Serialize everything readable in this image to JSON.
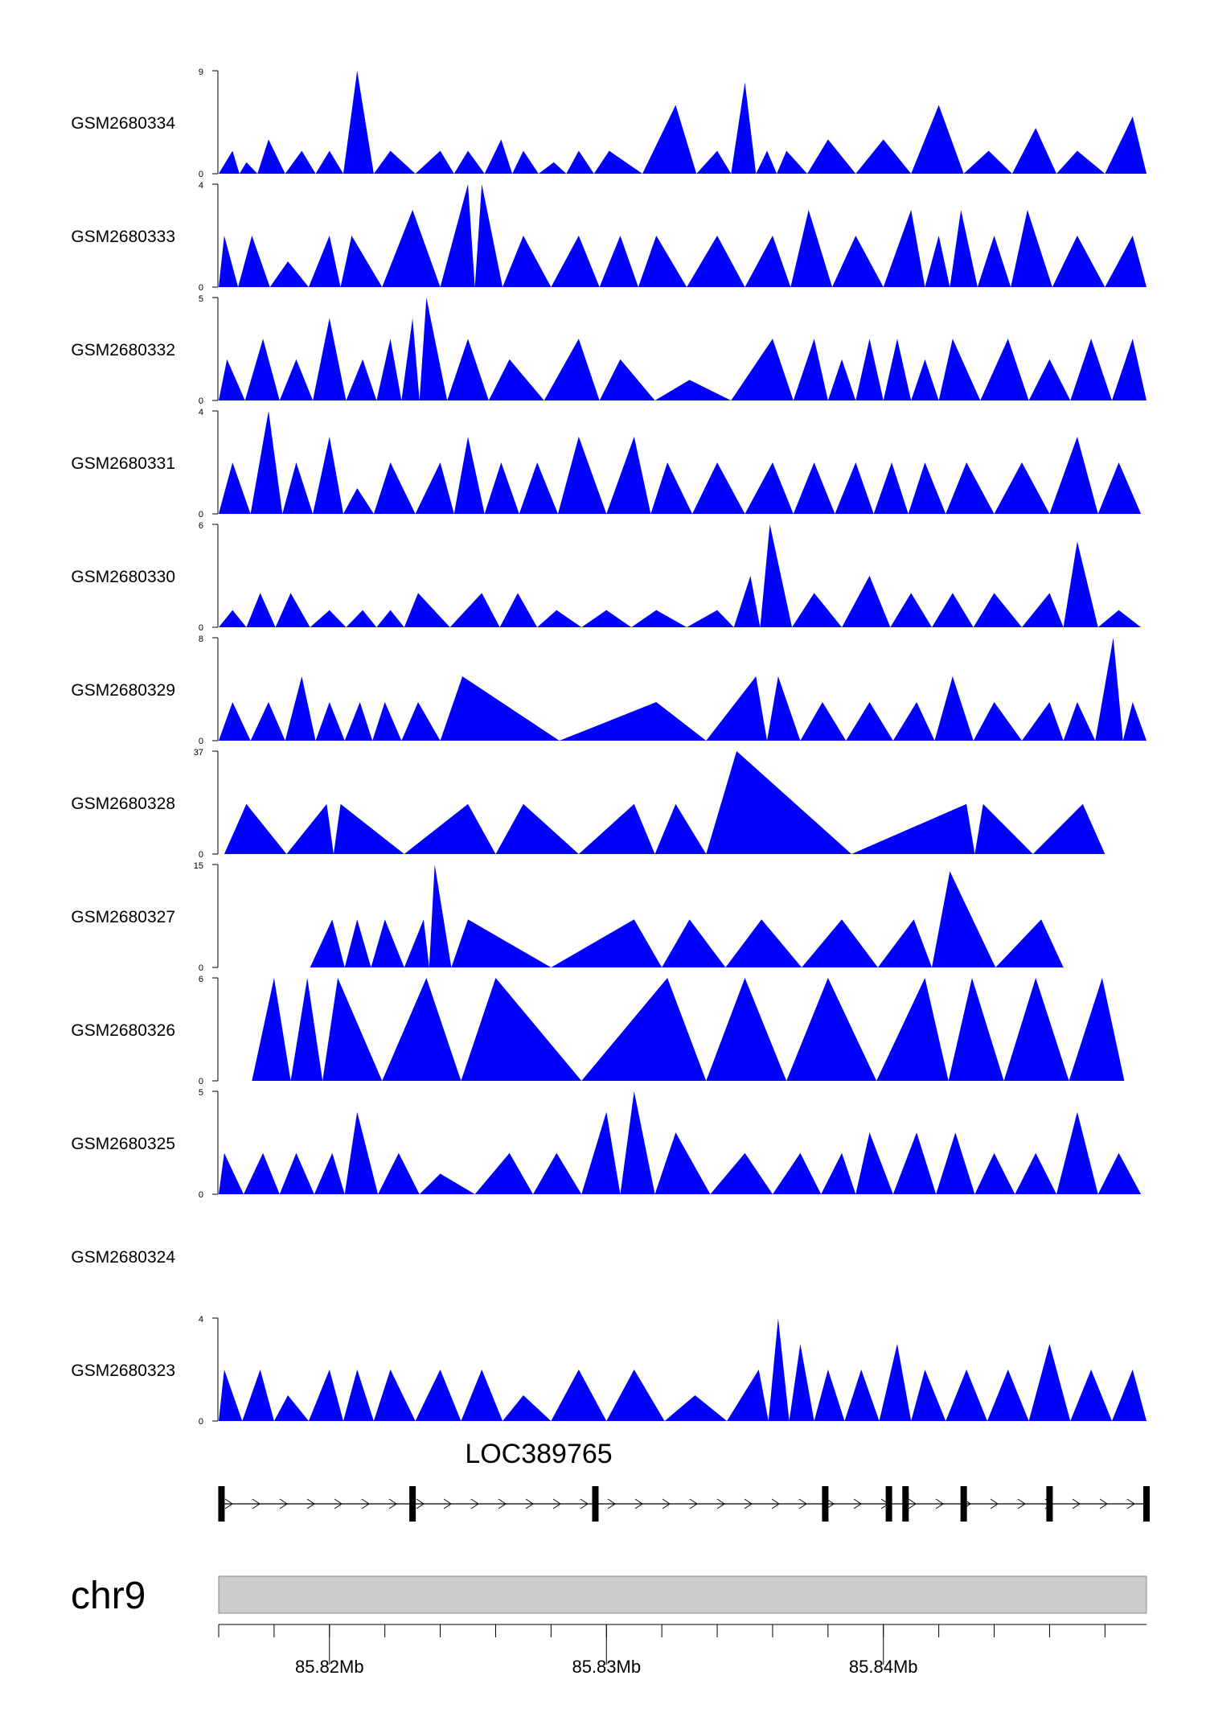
{
  "colors": {
    "fill": "#0000ff",
    "axis": "#000000",
    "ideogram": "#cccccc"
  },
  "chart_data": {
    "type": "area",
    "title": "",
    "xlabel": "",
    "xlim_mb": [
      85.816,
      85.8495
    ],
    "tracks": [
      {
        "name": "GSM2680334",
        "ymin": "0",
        "ymax": "9",
        "ymax_value": 9,
        "peaks_mb": [
          85.8165,
          85.817,
          85.8178,
          85.819,
          85.82,
          85.821,
          85.8222,
          85.824,
          85.825,
          85.8262,
          85.827,
          85.8281,
          85.829,
          85.8301,
          85.8325,
          85.834,
          85.835,
          85.8358,
          85.8365,
          85.838,
          85.84,
          85.842,
          85.8438,
          85.8455,
          85.847,
          85.849
        ],
        "peak_values": [
          2,
          1,
          3,
          2,
          2,
          9,
          2,
          2,
          2,
          3,
          2,
          1,
          2,
          2,
          6,
          2,
          8,
          2,
          2,
          3,
          3,
          6,
          2,
          4,
          2,
          5
        ]
      },
      {
        "name": "GSM2680333",
        "ymin": "0",
        "ymax": "4",
        "ymax_value": 4,
        "peaks_mb": [
          85.8162,
          85.8172,
          85.8185,
          85.82,
          85.8208,
          85.823,
          85.825,
          85.8255,
          85.827,
          85.829,
          85.8305,
          85.8318,
          85.834,
          85.836,
          85.8373,
          85.839,
          85.841,
          85.842,
          85.8428,
          85.844,
          85.8452,
          85.847,
          85.849
        ],
        "peak_values": [
          2,
          2,
          1,
          2,
          2,
          3,
          4,
          4,
          2,
          2,
          2,
          2,
          2,
          2,
          3,
          2,
          3,
          2,
          3,
          2,
          3,
          2,
          2
        ]
      },
      {
        "name": "GSM2680332",
        "ymin": "0",
        "ymax": "5",
        "ymax_value": 5,
        "peaks_mb": [
          85.8163,
          85.8176,
          85.8188,
          85.82,
          85.8212,
          85.8222,
          85.823,
          85.8235,
          85.825,
          85.8265,
          85.829,
          85.8305,
          85.833,
          85.836,
          85.8375,
          85.8385,
          85.8395,
          85.8405,
          85.8415,
          85.8425,
          85.8445,
          85.846,
          85.8475,
          85.849
        ],
        "peak_values": [
          2,
          3,
          2,
          4,
          2,
          3,
          4,
          5,
          3,
          2,
          3,
          2,
          1,
          3,
          3,
          2,
          3,
          3,
          2,
          3,
          3,
          2,
          3,
          3
        ]
      },
      {
        "name": "GSM2680331",
        "ymin": "0",
        "ymax": "4",
        "ymax_value": 4,
        "peaks_mb": [
          85.8165,
          85.8178,
          85.8188,
          85.82,
          85.821,
          85.8222,
          85.824,
          85.825,
          85.8262,
          85.8275,
          85.829,
          85.831,
          85.8322,
          85.834,
          85.836,
          85.8375,
          85.839,
          85.8403,
          85.8415,
          85.843,
          85.845,
          85.847,
          85.8485
        ],
        "peak_values": [
          2,
          4,
          2,
          3,
          1,
          2,
          2,
          3,
          2,
          2,
          3,
          3,
          2,
          2,
          2,
          2,
          2,
          2,
          2,
          2,
          2,
          3,
          2
        ]
      },
      {
        "name": "GSM2680330",
        "ymin": "0",
        "ymax": "6",
        "ymax_value": 6,
        "peaks_mb": [
          85.8165,
          85.8175,
          85.8186,
          85.82,
          85.8212,
          85.8222,
          85.8232,
          85.8255,
          85.8268,
          85.8282,
          85.83,
          85.8318,
          85.834,
          85.8352,
          85.8359,
          85.8375,
          85.8395,
          85.841,
          85.8425,
          85.844,
          85.846,
          85.847,
          85.8485
        ],
        "peak_values": [
          1,
          2,
          2,
          1,
          1,
          1,
          2,
          2,
          2,
          1,
          1,
          1,
          1,
          3,
          6,
          2,
          3,
          2,
          2,
          2,
          2,
          5,
          1
        ]
      },
      {
        "name": "GSM2680329",
        "ymin": "0",
        "ymax": "8",
        "ymax_value": 8,
        "peaks_mb": [
          85.8165,
          85.8178,
          85.819,
          85.82,
          85.8211,
          85.822,
          85.8232,
          85.8248,
          85.8318,
          85.8354,
          85.8362,
          85.8378,
          85.8395,
          85.8412,
          85.8425,
          85.844,
          85.846,
          85.847,
          85.8483,
          85.849
        ],
        "peak_values": [
          3,
          3,
          5,
          3,
          3,
          3,
          3,
          5,
          3,
          5,
          5,
          3,
          3,
          3,
          5,
          3,
          3,
          3,
          8,
          3
        ]
      },
      {
        "name": "GSM2680328",
        "ymin": "0",
        "ymax": "37",
        "ymax_value": 37,
        "peaks_mb": [
          85.817,
          85.8199,
          85.8204,
          85.825,
          85.827,
          85.831,
          85.8325,
          85.8347,
          85.843,
          85.8436,
          85.8472
        ],
        "peak_values": [
          18,
          18,
          18,
          18,
          18,
          18,
          18,
          37,
          18,
          18,
          18
        ]
      },
      {
        "name": "GSM2680327",
        "ymin": "0",
        "ymax": "15",
        "ymax_value": 15,
        "peaks_mb": [
          85.8201,
          85.821,
          85.822,
          85.8234,
          85.8238,
          85.825,
          85.831,
          85.833,
          85.8356,
          85.8385,
          85.8411,
          85.8424,
          85.8457
        ],
        "peak_values": [
          7,
          7,
          7,
          7,
          15,
          7,
          7,
          7,
          7,
          7,
          7,
          14,
          7
        ]
      },
      {
        "name": "GSM2680326",
        "ymin": "0",
        "ymax": "6",
        "ymax_value": 6,
        "peaks_mb": [
          85.818,
          85.8192,
          85.8203,
          85.8235,
          85.826,
          85.8322,
          85.835,
          85.838,
          85.8415,
          85.8432,
          85.8455,
          85.8479
        ],
        "peak_values": [
          6,
          6,
          6,
          6,
          6,
          6,
          6,
          6,
          6,
          6,
          6,
          6
        ]
      },
      {
        "name": "GSM2680325",
        "ymin": "0",
        "ymax": "5",
        "ymax_value": 5,
        "peaks_mb": [
          85.8162,
          85.8176,
          85.8188,
          85.8201,
          85.821,
          85.8225,
          85.824,
          85.8265,
          85.8282,
          85.83,
          85.831,
          85.8325,
          85.835,
          85.837,
          85.8385,
          85.8395,
          85.8412,
          85.8426,
          85.844,
          85.8455,
          85.847,
          85.8485
        ],
        "peak_values": [
          2,
          2,
          2,
          2,
          4,
          2,
          1,
          2,
          2,
          4,
          5,
          3,
          2,
          2,
          2,
          3,
          3,
          3,
          2,
          2,
          4,
          2
        ]
      },
      {
        "name": "GSM2680324",
        "ymin": "",
        "ymax": "",
        "ymax_value": 0,
        "peaks_mb": [],
        "peak_values": []
      },
      {
        "name": "GSM2680323",
        "ymin": "0",
        "ymax": "4",
        "ymax_value": 4,
        "peaks_mb": [
          85.8162,
          85.8175,
          85.8185,
          85.82,
          85.821,
          85.8222,
          85.824,
          85.8255,
          85.827,
          85.829,
          85.831,
          85.8332,
          85.8355,
          85.8362,
          85.837,
          85.838,
          85.8392,
          85.8405,
          85.8415,
          85.843,
          85.8445,
          85.846,
          85.8475,
          85.849
        ],
        "peak_values": [
          2,
          2,
          1,
          2,
          2,
          2,
          2,
          2,
          1,
          2,
          2,
          1,
          2,
          4,
          3,
          2,
          2,
          3,
          2,
          2,
          2,
          3,
          2,
          2
        ]
      }
    ],
    "gene": {
      "name": "LOC389765",
      "exons_mb": [
        85.8161,
        85.823,
        85.8296,
        85.8379,
        85.8402,
        85.8408,
        85.8429,
        85.846,
        85.8495
      ]
    },
    "chromosome": "chr9",
    "axis": {
      "major_ticks_mb": [
        85.82,
        85.83,
        85.84
      ],
      "tick_labels": [
        "85.82Mb",
        "85.83Mb",
        "85.84Mb"
      ],
      "minor_ticks_mb": [
        85.816,
        85.818,
        85.82,
        85.822,
        85.824,
        85.826,
        85.828,
        85.83,
        85.832,
        85.834,
        85.836,
        85.838,
        85.84,
        85.842,
        85.844,
        85.846,
        85.848
      ]
    }
  }
}
